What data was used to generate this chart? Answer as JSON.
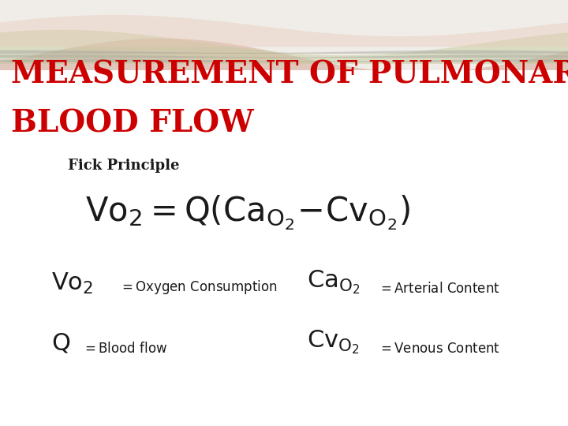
{
  "title_line1": "MEASUREMENT OF PULMONARY",
  "title_line2": "BLOOD FLOW",
  "title_color": "#cc0000",
  "title_fontsize": 28,
  "subtitle": "Fick Principle",
  "subtitle_fontsize": 13,
  "bg_color": "#f0ede8",
  "text_color": "#1a1a1a"
}
